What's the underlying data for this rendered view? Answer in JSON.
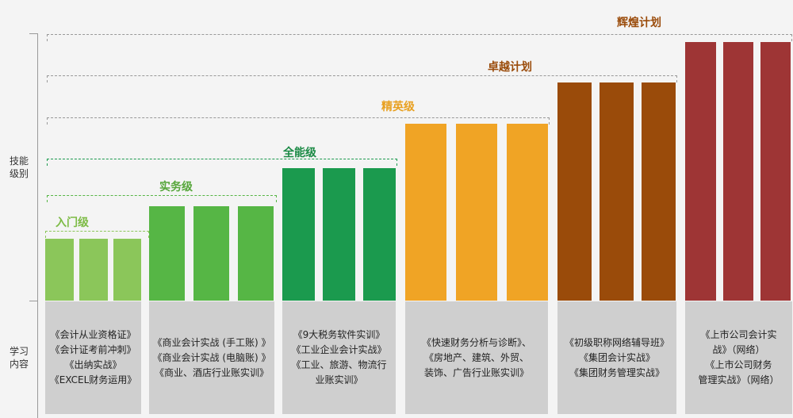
{
  "axis": {
    "top_label": "技能\n级别",
    "bottom_label": "学习\n内容"
  },
  "colors": {
    "entry": "#8bc65a",
    "practical": "#56b645",
    "allround": "#1b9a4e",
    "elite": "#f0a425",
    "excellence": "#9a4b0a",
    "brilliance": "#9e3535",
    "content_bg": "#cfcfcf"
  },
  "levels": [
    {
      "id": "entry",
      "label": "入门级",
      "label_color": "#7dbb45",
      "bracket_color": "#8bc65a"
    },
    {
      "id": "practical",
      "label": "实务级",
      "label_color": "#56a63b",
      "bracket_color": "#56b645"
    },
    {
      "id": "allround",
      "label": "全能级",
      "label_color": "#1b8a45",
      "bracket_color": "#1b9a4e"
    },
    {
      "id": "elite",
      "label": "精英级",
      "label_color": "#e8a020",
      "bracket_color": "#999999"
    },
    {
      "id": "excellence",
      "label": "卓越计划",
      "label_color": "#9a4b0a",
      "bracket_color": "#999999"
    },
    {
      "id": "brilliance",
      "label": "辉煌计划",
      "label_color": "#9a4b0a",
      "bracket_color": "#999999"
    }
  ],
  "content": [
    {
      "level": "entry",
      "lines": [
        "《会计从业资格证》",
        "《会计证考前冲刺》",
        "《出纳实战》",
        "《EXCEL财务运用》"
      ]
    },
    {
      "level": "practical",
      "lines": [
        "《商业会计实战 (手工账) 》",
        "《商业会计实战 (电脑账) 》",
        "《商业、酒店行业账实训》"
      ]
    },
    {
      "level": "allround",
      "lines": [
        "《9大税务软件实训》",
        "《工业企业会计实战》",
        "《工业、旅游、物流行",
        "业账实训》"
      ]
    },
    {
      "level": "elite",
      "lines": [
        "《快速财务分析与诊断》、",
        "《房地产、建筑、外贸、",
        "装饰、广告行业账实训》"
      ]
    },
    {
      "level": "excellence",
      "lines": [
        "《初级职称网络辅导班》",
        "《集团会计实战》",
        "《集团财务管理实战》"
      ]
    },
    {
      "level": "brilliance",
      "lines": [
        "《上市公司会计实",
        "战》（网络）",
        "《上市公司财务",
        "管理实战》（网络）"
      ]
    }
  ]
}
